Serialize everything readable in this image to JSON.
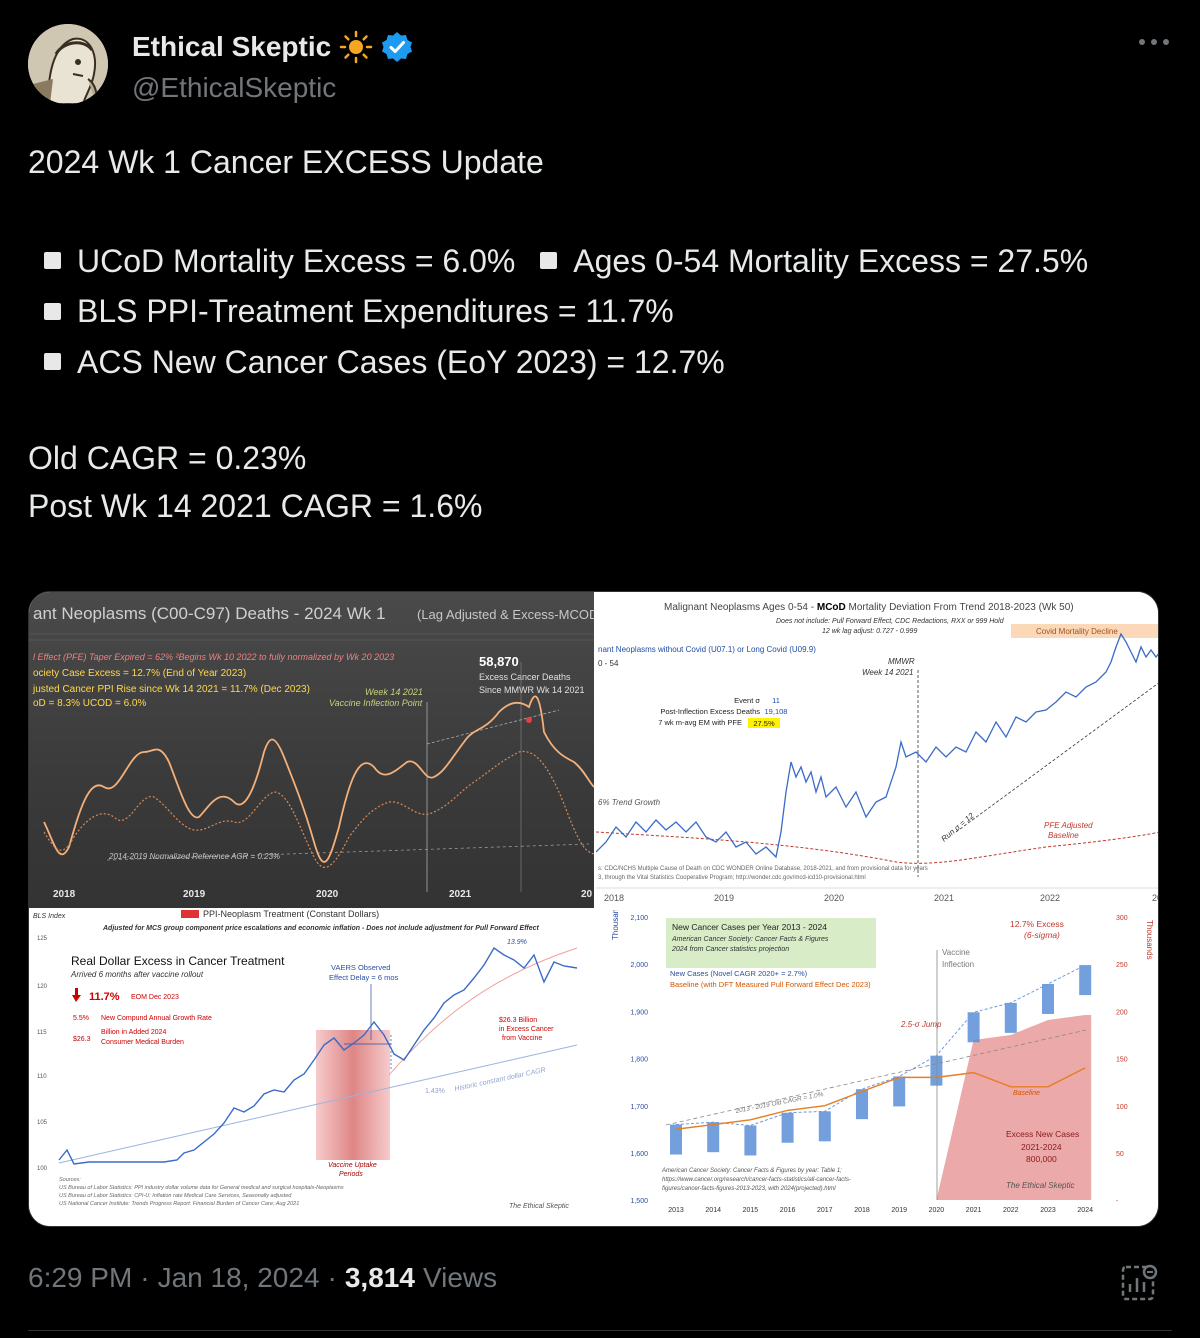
{
  "author": {
    "display_name": "Ethical Skeptic",
    "handle": "@EthicalSkeptic",
    "verified_color": "#1d9bf0"
  },
  "tweet": {
    "heading": "2024 Wk 1 Cancer EXCESS Update",
    "bullets": [
      "UCoD Mortality Excess = 6.0%",
      "Ages 0-54 Mortality Excess = 27.5%",
      "BLS PPI-Treatment Expenditures = 11.7%",
      "ACS New Cancer Cases (EoY 2023) = 12.7%"
    ],
    "old_cagr": "Old CAGR = 0.23%",
    "post_cagr": "Post Wk 14 2021 CAGR = 1.6%"
  },
  "images": {
    "p1": {
      "title": "ant Neoplasms (C00-C97) Deaths - 2024 Wk 1",
      "title_suffix": "(Lag Adjusted & Excess-MCOD  No",
      "lines": [
        "ociety Case Excess = 12.7% (End of Year 2023)",
        "justed  Cancer PPI Rise since Wk 14 2021 = 11.7% (Dec 2023)",
        "oD = 8.3%   UCOD = 6.0%"
      ],
      "pfe_line": "l Effect (PFE) Taper Expired = 62%   ²Begins Wk 10 2022 to fully normalized by Wk 20 2023",
      "big_number": "58,870",
      "big_sub1": "Excess Cancer Deaths",
      "big_sub2": "Since MMWR Wk 14 2021",
      "inflection1": "Week 14 2021",
      "inflection2": "Vaccine Inflection Point",
      "ref_line": "2014-2019 Normalized Reference AGR = 0.23%",
      "years": [
        "2018",
        "2019",
        "2020",
        "2021",
        "20"
      ]
    },
    "p2": {
      "title_a": "Malignant Neoplasms Ages 0-54 - ",
      "title_b": "MCoD",
      "title_c": " Mortality Deviation From Trend  2018-2023 (Wk 50)",
      "sub1": "Does not include: Pull Forward Effect,  CDC Redactions, RXX or 999 Hold",
      "sub2": "12 wk lag adjust: 0.727 - 0.999",
      "covid_tag": "Covid Mortality Decline",
      "series_label": "nant Neoplasms without Covid (U07.1) or Long Covid (U09.9)",
      "age_label": "0 - 54",
      "mmwr": "MMWR",
      "wk14": "Week 14 2021",
      "stat_labels": [
        "Event σ",
        "Post-Inflection Excess Deaths",
        "7 wk m-avg EM with PFE"
      ],
      "stat_values": [
        "11",
        "19,108",
        "27.5%"
      ],
      "trend": "6% Trend Growth",
      "run": "Run σ = 12",
      "pfe1": "PFE Adjusted",
      "pfe2": "Baseline",
      "source1": "s: CDC/NCHS Multiple Cause of Death on CDC WONDER Online Database, 2018-2021, and from provisional data for years",
      "source2": "3, through the Vital Statistics Cooperative Program; http://wonder.cdc.gov/mcd-icd10-provisional.html",
      "years": [
        "2018",
        "2019",
        "2020",
        "2021",
        "2022",
        "20"
      ]
    },
    "p3": {
      "bls_index": "BLS Index",
      "title_top": "PPI-Neoplasm  Treatment  (Constant Dollars)",
      "subtitle": "Adjusted for MCS group component  price escalations and economic inflation - Does not include adjustment for Pull Forward Effect",
      "panel_title": "Real Dollar Excess in Cancer Treatment",
      "panel_sub": "Arrived 6 months after vaccine rollout",
      "big_pct": "11.7%",
      "eom": "EOM Dec 2023",
      "row1a": "5.5%",
      "row1b": "New Compund Annual Growth Rate",
      "row2a": "$26.3",
      "row2b": "Billion in Added 2024",
      "row2c": "Consumer Medical Burden",
      "vaers1": "VAERS Observed",
      "vaers2": "Effect Delay = 6 mos",
      "peak": "13.9%",
      "excess1": "$26.3 Billion",
      "excess2": "in Excess Cancer",
      "excess3": "from Vaccine",
      "cagr_pct": "1.43%",
      "cagr_label": "Historic constant dollar CAGR",
      "uptake1": "Vaccine Uptake",
      "uptake2": "Periods",
      "y_ticks": [
        "125",
        "120",
        "115",
        "110",
        "105",
        "100"
      ],
      "sources": [
        "Sources:",
        "US Bureau of Labor Statistics: PPI industry dollar volume data for General medical and surgical hospitals-Neoplasms",
        "US Bureau of Labor Statistics: CPI-U: Inflation rate Medical Care Services, Seasonally adjusted",
        "US National Cancer Institute: Trends Progress Report: Financial Burden of Cancer Care; Aug 2021"
      ],
      "signature": "The Ethical Skeptic"
    },
    "p4": {
      "box_title": "New Cancer Cases per Year 2013 - 2024",
      "box_sub1": "American Cancer Society: Cancer Facts & Figures",
      "box_sub2": "2024 from Cancer statistics projection",
      "legend_new": "New Cases (Novel CAGR 2020+ = 2.7%)",
      "legend_base": "Baseline (with DFT Measured Pull Forward Effect Dec 2023)",
      "vaccine1": "Vaccine",
      "vaccine2": "Inflection",
      "excess_pct": "12.7% Excess",
      "sigma": "(6-sigma)",
      "jump": "2.5-σ Jump",
      "old_cagr": "2013 - 2019 Old CAGR = 1.0%",
      "baseline_label": "Baseline",
      "excess_cases1": "Excess New Cases",
      "excess_cases2": "2021-2024",
      "excess_cases3": "800,000",
      "left_axis": "Thousands",
      "right_axis": "Thousands",
      "left_ticks": [
        "2,100",
        "2,000",
        "1,900",
        "1,800",
        "1,700",
        "1,600",
        "1,500"
      ],
      "right_ticks": [
        "300",
        "250",
        "200",
        "150",
        "100",
        "50",
        "-"
      ],
      "years": [
        "2013",
        "2014",
        "2015",
        "2016",
        "2017",
        "2018",
        "2019",
        "2020",
        "2021",
        "2022",
        "2023",
        "2024"
      ],
      "cases": [
        1660,
        1665,
        1658,
        1685,
        1688,
        1735,
        1762,
        1806,
        1898,
        1918,
        1958,
        1998
      ],
      "baseline": [
        75,
        80,
        85,
        95,
        100,
        115,
        130,
        130,
        135,
        120,
        120,
        140
      ],
      "source1": "American Cancer Society: Cancer Facts & Figures by year: Table 1;",
      "source2": "https://www.cancer.org/research/cancer-facts-statistics/all-cancer-facts-",
      "source3": "figures/cancer-facts-figures-2013-2023, with 2024(projected).html",
      "signature": "The Ethical Skeptic"
    }
  },
  "footer": {
    "time": "6:29 PM",
    "sep1": "·",
    "date": "Jan 18, 2024",
    "sep2": "·",
    "views_count": "3,814",
    "views_label": "Views"
  }
}
